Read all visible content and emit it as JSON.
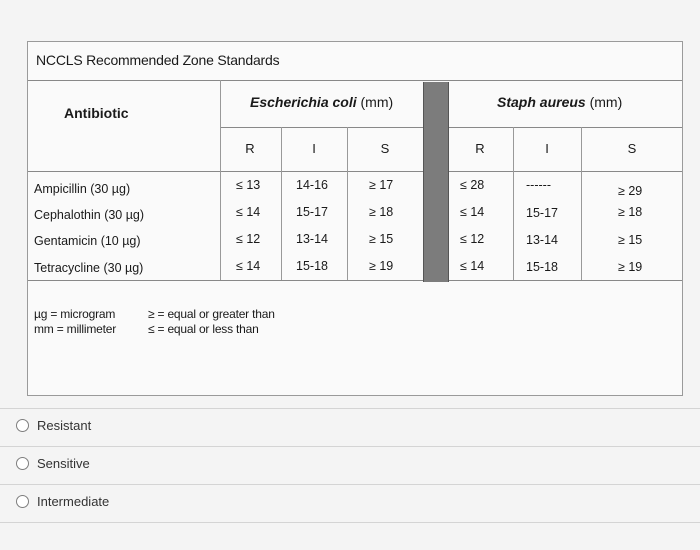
{
  "table": {
    "title": "NCCLS Recommended Zone Standards",
    "antibiotic_header": "Antibiotic",
    "groups": [
      {
        "name": "Escherichia coli",
        "unit": "(mm)",
        "cols": [
          "R",
          "I",
          "S"
        ]
      },
      {
        "name": "Staph aureus",
        "unit": "(mm)",
        "cols": [
          "R",
          "I",
          "S"
        ]
      }
    ],
    "rows": [
      {
        "name": "Ampicillin (30 µg)",
        "ecoli": [
          "≤ 13",
          "14-16",
          "≥ 17"
        ],
        "staph": [
          "≤ 28",
          "------",
          "≥ 29"
        ]
      },
      {
        "name": "Cephalothin (30 µg)",
        "ecoli": [
          "≤ 14",
          "15-17",
          "≥ 18"
        ],
        "staph": [
          "≤ 14",
          "15-17",
          "≥ 18"
        ]
      },
      {
        "name": "Gentamicin (10 µg)",
        "ecoli": [
          "≤ 12",
          "13-14",
          "≥ 15"
        ],
        "staph": [
          "≤ 12",
          "13-14",
          "≥ 15"
        ]
      },
      {
        "name": "Tetracycline (30 µg)",
        "ecoli": [
          "≤ 14",
          "15-18",
          "≥ 19"
        ],
        "staph": [
          "≤ 14",
          "15-18",
          "≥ 19"
        ]
      }
    ],
    "legend_left": [
      "µg = microgram",
      "mm = millimeter"
    ],
    "legend_right": [
      "≥ = equal or greater than",
      "≤ = equal or less than"
    ]
  },
  "options": [
    {
      "label": "Resistant"
    },
    {
      "label": "Sensitive"
    },
    {
      "label": "Intermediate"
    }
  ]
}
